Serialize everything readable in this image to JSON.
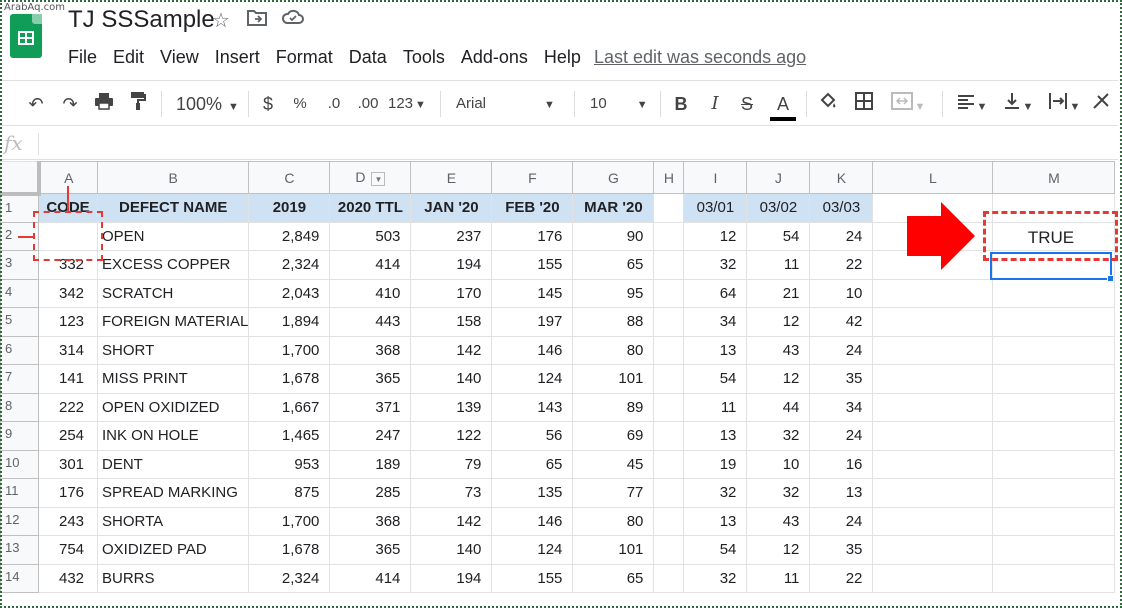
{
  "watermark": "ArabAq.com",
  "title_bar": {
    "doc_title": "TJ SSSample",
    "last_edit": "Last edit was seconds ago",
    "icons": [
      "star-icon",
      "move-to-folder-icon",
      "cloud-saved-icon"
    ]
  },
  "menu": [
    "File",
    "Edit",
    "View",
    "Insert",
    "Format",
    "Data",
    "Tools",
    "Add-ons",
    "Help"
  ],
  "toolbar": {
    "zoom": "100%",
    "currency": "$",
    "percent": "%",
    "decrease_decimal": ".0",
    "increase_decimal": ".00",
    "more_formats": "123",
    "font": "Arial",
    "font_size": "10",
    "bold": "B",
    "italic": "I",
    "strikethrough": "S",
    "text_color": "A",
    "text_color_value": "#000000"
  },
  "formula_bar": {
    "fx": "fx",
    "value": ""
  },
  "columns": [
    "A",
    "B",
    "C",
    "D",
    "E",
    "F",
    "G",
    "H",
    "I",
    "J",
    "K",
    "L",
    "M"
  ],
  "header_row": {
    "row_num": "1",
    "cells": [
      "CODE",
      "DEFECT NAME",
      "2019",
      "2020 TTL",
      "JAN '20",
      "FEB '20",
      "MAR '20",
      "",
      "03/01",
      "03/02",
      "03/03",
      "",
      ""
    ]
  },
  "rows": [
    {
      "n": "2",
      "cells": [
        "",
        "OPEN",
        "2,849",
        "503",
        "237",
        "176",
        "90",
        "",
        "12",
        "54",
        "24",
        "",
        ""
      ]
    },
    {
      "n": "3",
      "cells": [
        "332",
        "EXCESS COPPER",
        "2,324",
        "414",
        "194",
        "155",
        "65",
        "",
        "32",
        "11",
        "22",
        "",
        ""
      ]
    },
    {
      "n": "4",
      "cells": [
        "342",
        "SCRATCH",
        "2,043",
        "410",
        "170",
        "145",
        "95",
        "",
        "64",
        "21",
        "10",
        "",
        ""
      ]
    },
    {
      "n": "5",
      "cells": [
        "123",
        "FOREIGN MATERIAL",
        "1,894",
        "443",
        "158",
        "197",
        "88",
        "",
        "34",
        "12",
        "42",
        "",
        ""
      ]
    },
    {
      "n": "6",
      "cells": [
        "314",
        "SHORT",
        "1,700",
        "368",
        "142",
        "146",
        "80",
        "",
        "13",
        "43",
        "24",
        "",
        ""
      ]
    },
    {
      "n": "7",
      "cells": [
        "141",
        "MISS PRINT",
        "1,678",
        "365",
        "140",
        "124",
        "101",
        "",
        "54",
        "12",
        "35",
        "",
        ""
      ]
    },
    {
      "n": "8",
      "cells": [
        "222",
        "OPEN OXIDIZED",
        "1,667",
        "371",
        "139",
        "143",
        "89",
        "",
        "11",
        "44",
        "34",
        "",
        ""
      ]
    },
    {
      "n": "9",
      "cells": [
        "254",
        "INK ON HOLE",
        "1,465",
        "247",
        "122",
        "56",
        "69",
        "",
        "13",
        "32",
        "24",
        "",
        ""
      ]
    },
    {
      "n": "10",
      "cells": [
        "301",
        "DENT",
        "953",
        "189",
        "79",
        "65",
        "45",
        "",
        "19",
        "10",
        "16",
        "",
        ""
      ]
    },
    {
      "n": "11",
      "cells": [
        "176",
        "SPREAD MARKING",
        "875",
        "285",
        "73",
        "135",
        "77",
        "",
        "32",
        "32",
        "13",
        "",
        ""
      ]
    },
    {
      "n": "12",
      "cells": [
        "243",
        "SHORTA",
        "1,700",
        "368",
        "142",
        "146",
        "80",
        "",
        "13",
        "43",
        "24",
        "",
        ""
      ]
    },
    {
      "n": "13",
      "cells": [
        "754",
        "OXIDIZED PAD",
        "1,678",
        "365",
        "140",
        "124",
        "101",
        "",
        "54",
        "12",
        "35",
        "",
        ""
      ]
    },
    {
      "n": "14",
      "cells": [
        "432",
        "BURRS",
        "2,324",
        "414",
        "194",
        "155",
        "65",
        "",
        "32",
        "11",
        "22",
        "",
        ""
      ]
    }
  ],
  "result_cell": {
    "value": "TRUE"
  },
  "colors": {
    "header_fill": "#cfe2f3",
    "annotation": "#e53935",
    "arrow": "#ff0000",
    "selection": "#1a73e8"
  }
}
